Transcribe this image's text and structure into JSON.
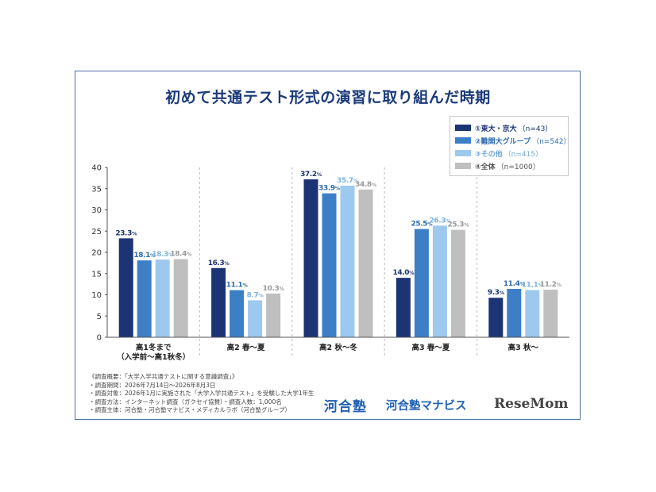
{
  "title": "初めて共通テスト形式の演習に取り組んだ時期",
  "chart_data": {
    "type": "bar",
    "title": "初めて共通テスト形式の演習に取り組んだ時期",
    "ylim": [
      0,
      40
    ],
    "yticks": [
      "0",
      "5",
      "10",
      "15",
      "20",
      "25",
      "30",
      "35",
      "40"
    ],
    "categories": [
      [
        "高1冬まで",
        "（入学前〜高1秋冬）"
      ],
      [
        "高2 春〜夏"
      ],
      [
        "高2 秋〜冬"
      ],
      [
        "高3 春〜夏"
      ],
      [
        "高3 秋〜"
      ]
    ],
    "series": [
      {
        "name": "①東大・京大",
        "n": "（n=43）",
        "color": "#1c3473",
        "labelColor": "#1c3473",
        "values": [
          23.3,
          16.3,
          37.2,
          14.0,
          9.3
        ],
        "labels": [
          "23.3",
          "16.3",
          "37.2",
          "14.0",
          "9.3"
        ]
      },
      {
        "name": "②難関大グループ",
        "n": "（n=542）",
        "color": "#3c7fc6",
        "labelColor": "#2e6cb0",
        "values": [
          18.1,
          11.1,
          33.9,
          25.5,
          11.4
        ],
        "labels": [
          "18.1",
          "11.1",
          "33.9",
          "25.5",
          "11.4"
        ]
      },
      {
        "name": "③その他",
        "n": "（n=415）",
        "color": "#9ec9ee",
        "labelColor": "#7fb3e0",
        "values": [
          18.3,
          8.7,
          35.7,
          26.3,
          11.1
        ],
        "labels": [
          "18.3",
          "8.7",
          "35.7",
          "26.3",
          "11.1"
        ]
      },
      {
        "name": "④全体",
        "n": "（n=1000）",
        "color": "#bfbfbf",
        "labelColor": "#9a9a9a",
        "values": [
          18.4,
          10.3,
          34.8,
          25.3,
          11.2
        ],
        "labels": [
          "18.4",
          "10.3",
          "34.8",
          "25.3",
          "11.2"
        ]
      }
    ],
    "value_suffix": "%",
    "grid": "dashed vertical separators",
    "legend_position": "top-right"
  },
  "notes": [
    "《調査概要：「大学入学共通テストに関する意識調査」》",
    "・調査期間：2026年7月14日〜2026年8月3日",
    "・調査対象：2026年1月に実施された「大学入学共通テスト」を受験した大学1年生",
    "・調査方法：インターネット調査（ガクセイ協賛）・調査人数：1,000名",
    "・調査主体：河合塾・河合塾マナビス・メディカルラボ（河合塾グループ）"
  ],
  "logos": {
    "kawaijuku": "河合塾",
    "manabis": "河合塾マナビス",
    "resemom": "ReseMom"
  }
}
